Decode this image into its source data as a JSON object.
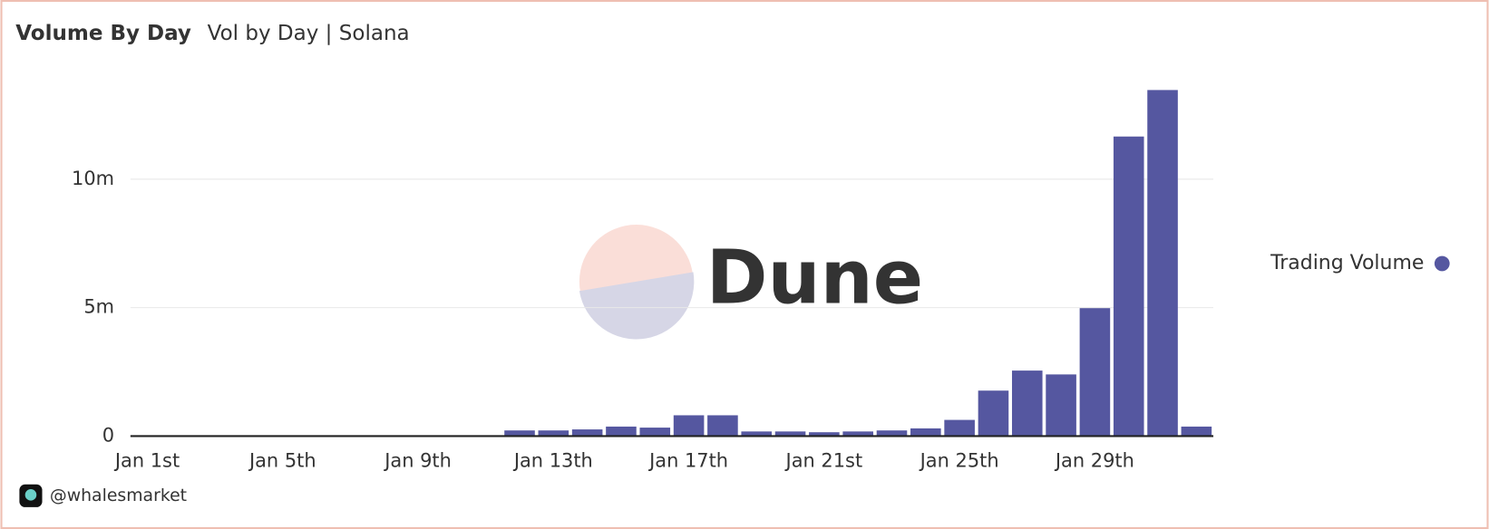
{
  "chart_data": {
    "type": "bar",
    "title": "Volume By Day",
    "subtitle": "Vol by Day | Solana",
    "watermark": "Dune",
    "footer": "@whalesmarket",
    "categories": [
      "Jan 1st",
      null,
      null,
      null,
      "Jan 5th",
      null,
      null,
      null,
      "Jan 9th",
      null,
      null,
      null,
      "Jan 13th",
      null,
      null,
      null,
      "Jan 17th",
      null,
      null,
      null,
      "Jan 21st",
      null,
      null,
      null,
      "Jan 25th",
      null,
      null,
      null,
      "Jan 29th",
      null,
      null,
      null
    ],
    "series": [
      {
        "name": "Trading Volume",
        "color": "#5557a0",
        "values": [
          0,
          0,
          0,
          0,
          0,
          0,
          0,
          0,
          0,
          0,
          0,
          220000,
          220000,
          260000,
          370000,
          330000,
          810000,
          810000,
          180000,
          180000,
          150000,
          180000,
          220000,
          300000,
          630000,
          1770000,
          2550000,
          2400000,
          4980000,
          11660000,
          13470000,
          370000
        ]
      }
    ],
    "ylim": [
      0,
      15000000
    ],
    "yticks": [
      0,
      {
        "value": 5000000,
        "label": "5m"
      },
      {
        "value": 10000000,
        "label": "10m"
      }
    ],
    "grid": true,
    "legend": "right"
  }
}
